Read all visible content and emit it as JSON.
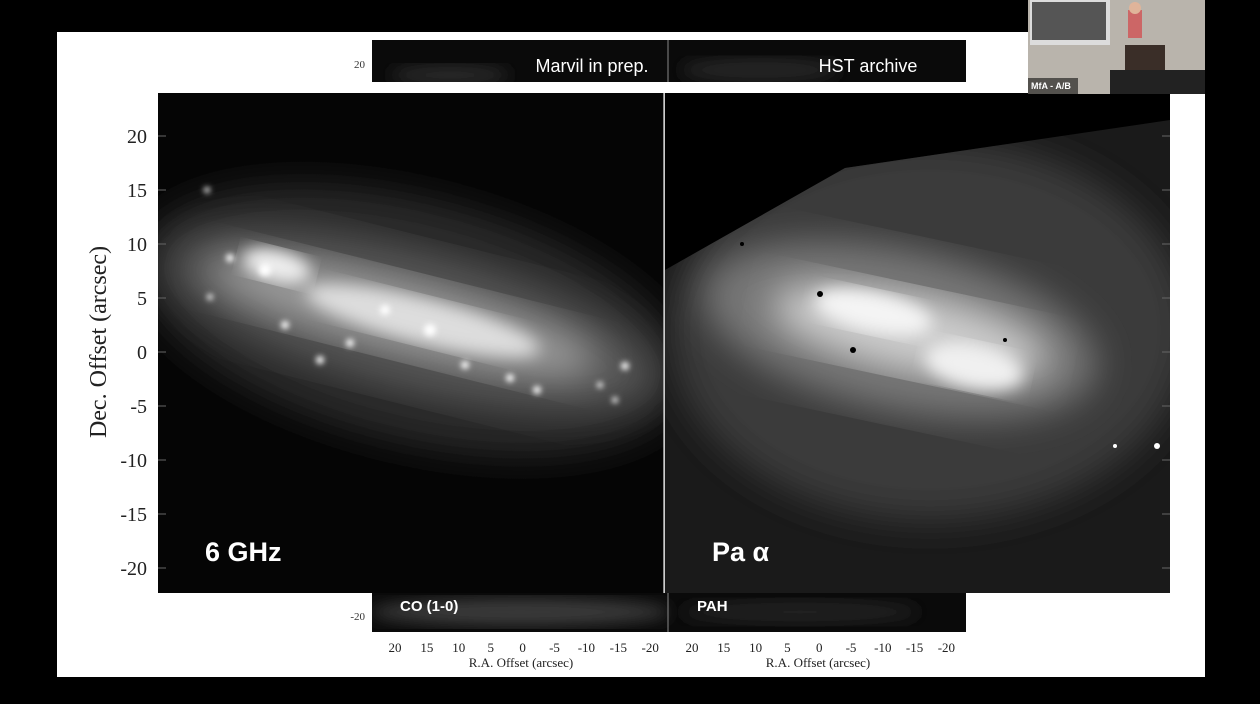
{
  "slide": {
    "top_strip": {
      "tick": "20",
      "left_label": "Marvil in prep.",
      "right_label": "HST archive"
    },
    "y_axis": {
      "label": "Dec. Offset (arcsec)",
      "ticks": [
        "20",
        "15",
        "10",
        "5",
        "0",
        "-5",
        "-10",
        "-15",
        "-20"
      ]
    },
    "panels": [
      {
        "label": "6 GHz"
      },
      {
        "label": "Pa α"
      }
    ],
    "bottom_strip": {
      "tick": "-20",
      "left_label": "CO (1-0)",
      "right_label": "PAH"
    },
    "x_axes": [
      {
        "label": "R.A. Offset (arcsec)",
        "ticks": [
          "20",
          "15",
          "10",
          "5",
          "0",
          "-5",
          "-10",
          "-15",
          "-20"
        ]
      },
      {
        "label": "R.A. Offset (arcsec)",
        "ticks": [
          "20",
          "15",
          "10",
          "5",
          "0",
          "-5",
          "-10",
          "-15",
          "-20"
        ]
      }
    ]
  },
  "webcam": {
    "caption": "MfA - A/B"
  }
}
